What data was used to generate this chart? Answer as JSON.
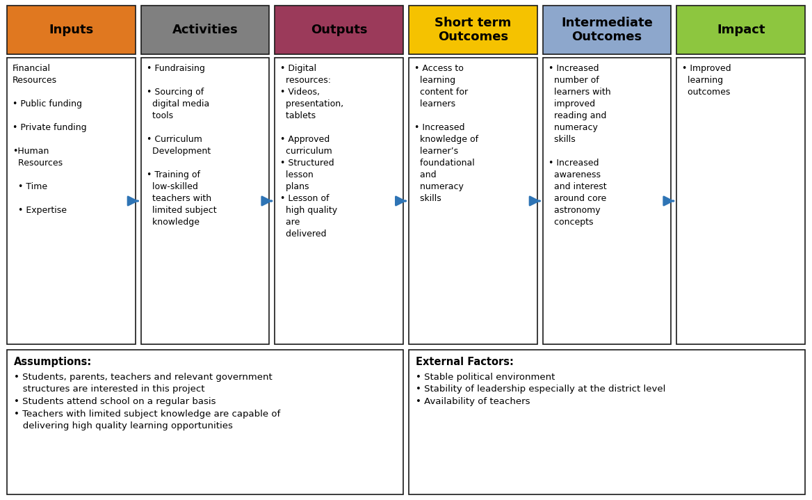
{
  "header_boxes": [
    {
      "label": "Inputs",
      "color": "#E07820",
      "text_color": "#000000"
    },
    {
      "label": "Activities",
      "color": "#808080",
      "text_color": "#000000"
    },
    {
      "label": "Outputs",
      "color": "#9B3A5A",
      "text_color": "#000000"
    },
    {
      "label": "Short term\nOutcomes",
      "color": "#F5C200",
      "text_color": "#000000"
    },
    {
      "label": "Intermediate\nOutcomes",
      "color": "#8DA7CC",
      "text_color": "#000000"
    },
    {
      "label": "Impact",
      "color": "#8DC63F",
      "text_color": "#000000"
    }
  ],
  "content_boxes": [
    "Financial\nResources\n\n• Public funding\n\n• Private funding\n\n•Human\n  Resources\n\n  • Time\n\n  • Expertise",
    "• Fundraising\n\n• Sourcing of\n  digital media\n  tools\n\n• Curriculum\n  Development\n\n• Training of\n  low-skilled\n  teachers with\n  limited subject\n  knowledge",
    "• Digital\n  resources:\n• Videos,\n  presentation,\n  tablets\n\n• Approved\n  curriculum\n• Structured\n  lesson\n  plans\n• Lesson of\n  high quality\n  are\n  delivered",
    "• Access to\n  learning\n  content for\n  learners\n\n• Increased\n  knowledge of\n  learner’s\n  foundational\n  and\n  numeracy\n  skills",
    "• Increased\n  number of\n  learners with\n  improved\n  reading and\n  numeracy\n  skills\n\n• Increased\n  awareness\n  and interest\n  around core\n  astronomy\n  concepts",
    "• Improved\n  learning\n  outcomes"
  ],
  "assumptions_title": "Assumptions:",
  "assumptions_text": "• Students, parents, teachers and relevant government\n   structures are interested in this project\n• Students attend school on a regular basis\n• Teachers with limited subject knowledge are capable of\n   delivering high quality learning opportunities",
  "external_title": "External Factors:",
  "external_text": "• Stable political environment\n• Stability of leadership especially at the district level\n• Availability of teachers",
  "arrow_color": "#2E74B5",
  "box_edge_color": "#1a1a1a",
  "background_color": "#FFFFFF",
  "fig_width": 11.68,
  "fig_height": 7.19,
  "dpi": 100
}
